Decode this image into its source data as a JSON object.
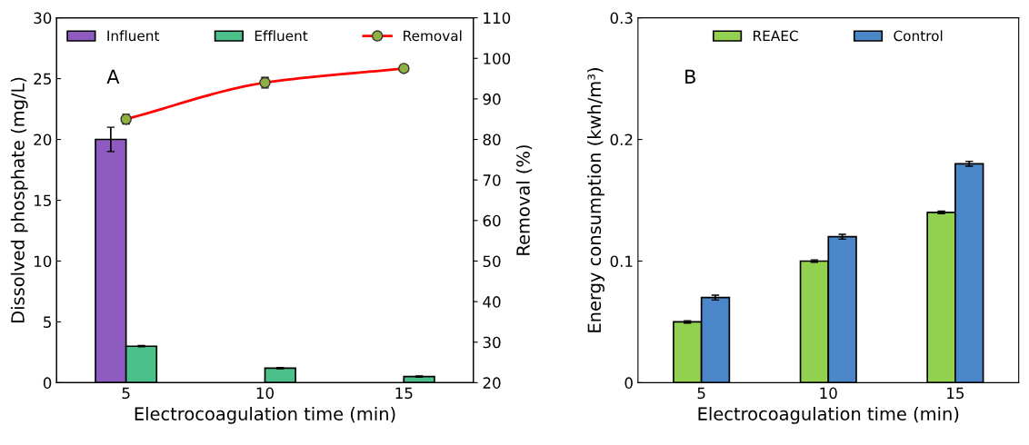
{
  "chart_data": [
    {
      "type": "bar",
      "categories": [
        "5",
        "10",
        "15"
      ],
      "xlabel": "Electrocoagulation time (min)",
      "ylabel": "Dissolved phosphate (mg/L)",
      "y2label": "Removal (%)",
      "ylim": [
        0,
        30
      ],
      "yticks": [
        0,
        5,
        10,
        15,
        20,
        25,
        30
      ],
      "y2lim": [
        20,
        110
      ],
      "y2ticks": [
        20,
        30,
        40,
        50,
        60,
        70,
        80,
        90,
        100,
        110
      ],
      "annotations": [
        "A"
      ],
      "legend": "top",
      "grid": false,
      "series": [
        {
          "name": "Influent",
          "color": "#8e5cc0",
          "values": [
            20,
            null,
            null
          ],
          "errors": [
            1,
            null,
            null
          ]
        },
        {
          "name": "Effluent",
          "color": "#4cc08a",
          "values": [
            3,
            1.2,
            0.5
          ],
          "errors": [
            0.05,
            0.05,
            0.05
          ]
        },
        {
          "name": "Removal",
          "type": "line",
          "axis": "y2",
          "color": "#ff0000",
          "marker": "circle",
          "values": [
            85,
            94,
            97.5
          ],
          "errors": [
            1.2,
            1.3,
            0.3
          ]
        }
      ]
    },
    {
      "type": "bar",
      "categories": [
        "5",
        "10",
        "15"
      ],
      "xlabel": "Electrocoagulation time (min)",
      "ylabel": "Energy consumption (kwh/m³)",
      "ylim": [
        0,
        0.3
      ],
      "yticks": [
        0,
        0.1,
        0.2,
        0.3
      ],
      "annotations": [
        "B"
      ],
      "legend": "top",
      "grid": false,
      "series": [
        {
          "name": "REAEC",
          "color": "#92d050",
          "values": [
            0.05,
            0.1,
            0.14
          ],
          "errors": [
            0.001,
            0.001,
            0.001
          ]
        },
        {
          "name": "Control",
          "color": "#4a86c8",
          "values": [
            0.07,
            0.12,
            0.18
          ],
          "errors": [
            0.002,
            0.002,
            0.002
          ]
        }
      ]
    }
  ]
}
